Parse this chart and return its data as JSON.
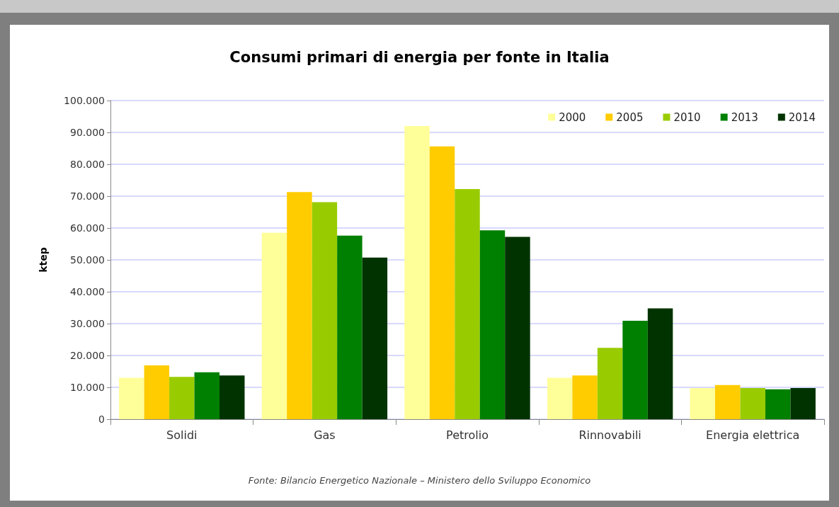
{
  "chart_data": {
    "type": "bar",
    "title": "Consumi primari di energia per fonte in Italia",
    "ylabel": "ktep",
    "categories": [
      "Solidi",
      "Gas",
      "Petrolio",
      "Rinnovabili",
      "Energia elettrica"
    ],
    "series": [
      {
        "name": "2000",
        "color": "#ffff99",
        "values": [
          13000,
          58500,
          92000,
          13000,
          9800
        ]
      },
      {
        "name": "2005",
        "color": "#ffcc00",
        "values": [
          16900,
          71300,
          85600,
          13700,
          10700
        ]
      },
      {
        "name": "2010",
        "color": "#99cc00",
        "values": [
          13300,
          68100,
          72200,
          22400,
          9800
        ]
      },
      {
        "name": "2013",
        "color": "#008000",
        "values": [
          14700,
          57600,
          59300,
          30900,
          9400
        ]
      },
      {
        "name": "2014",
        "color": "#003300",
        "values": [
          13700,
          50700,
          57200,
          34800,
          9800
        ]
      }
    ],
    "ylim": [
      0,
      100000
    ],
    "yticks": [
      0,
      {
        "value": 10000,
        "label": "10.000"
      },
      {
        "value": 20000,
        "label": "20.000"
      },
      {
        "value": 30000,
        "label": "30.000"
      },
      {
        "value": 40000,
        "label": "40.000"
      },
      {
        "value": 50000,
        "label": "50.000"
      },
      {
        "value": 60000,
        "label": "60.000"
      },
      {
        "value": 70000,
        "label": "70.000"
      },
      {
        "value": 80000,
        "label": "80.000"
      },
      {
        "value": 90000,
        "label": "90.000"
      },
      {
        "value": 100000,
        "label": "100.000"
      }
    ],
    "grid": "y",
    "legend": "top right",
    "annotations": [
      "Fonte: Bilancio Energetico Nazionale – Ministero dello Sviluppo Economico"
    ]
  }
}
